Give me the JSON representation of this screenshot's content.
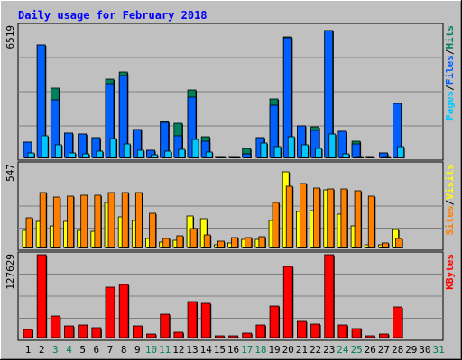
{
  "chart_data": {
    "type": "bar",
    "title": "Daily usage for February 2018",
    "categories": [
      "1",
      "2",
      "3",
      "4",
      "5",
      "6",
      "7",
      "8",
      "9",
      "10",
      "11",
      "12",
      "13",
      "14",
      "15",
      "16",
      "17",
      "18",
      "19",
      "20",
      "21",
      "22",
      "23",
      "24",
      "25",
      "26",
      "27",
      "28",
      "29",
      "30",
      "31"
    ],
    "weekend_days": [
      "3",
      "4",
      "10",
      "11",
      "17",
      "18",
      "24",
      "25",
      "31"
    ],
    "panels": [
      {
        "id": "top",
        "max_label": "6519",
        "ymax": 6519,
        "legend": [
          {
            "text": "Pages",
            "color": "#00c8ff"
          },
          {
            "text": "/",
            "color": "#000000"
          },
          {
            "text": "Files",
            "color": "#0060ff"
          },
          {
            "text": "/",
            "color": "#000000"
          },
          {
            "text": "Hits",
            "color": "#00805c"
          }
        ],
        "series": [
          {
            "name": "Hits",
            "color": "#00805c",
            "values": [
              760,
              5560,
              3430,
              1220,
              1180,
              985,
              3880,
              4220,
              1390,
              355,
              1780,
              1700,
              3360,
              1010,
              60,
              60,
              460,
              975,
              2920,
              6000,
              1560,
              1515,
              6290,
              1310,
              820,
              63,
              215,
              2700,
              0,
              0,
              0
            ]
          },
          {
            "name": "Files",
            "color": "#0060ff",
            "values": [
              760,
              5560,
              2870,
              1220,
              1180,
              985,
              3670,
              4070,
              1390,
              355,
              1730,
              1090,
              3010,
              790,
              60,
              60,
              200,
              975,
              2590,
              5960,
              1560,
              1350,
              6290,
              1280,
              660,
              63,
              215,
              2700,
              0,
              0,
              0
            ]
          },
          {
            "name": "Pages",
            "color": "#00c8ff",
            "values": [
              210,
              1050,
              640,
              230,
              200,
              325,
              950,
              650,
              360,
              145,
              330,
              385,
              875,
              255,
              33,
              25,
              15,
              700,
              540,
              1015,
              630,
              440,
              1175,
              190,
              25,
              3,
              60,
              525,
              0,
              0,
              0
            ]
          }
        ]
      },
      {
        "id": "middle",
        "max_label": "547",
        "ymax": 547,
        "legend": [
          {
            "text": "Sites",
            "color": "#ff8000"
          },
          {
            "text": "/",
            "color": "#000000"
          },
          {
            "text": "Visits",
            "color": "#ffff00"
          }
        ],
        "series": [
          {
            "name": "Visits",
            "color": "#ffff00",
            "values": [
              115,
              175,
              145,
              175,
              110,
              105,
              295,
              205,
              180,
              60,
              35,
              45,
              210,
              190,
              15,
              30,
              55,
              55,
              180,
              500,
              240,
              245,
              380,
              220,
              145,
              20,
              20,
              120,
              0,
              0,
              0
            ]
          },
          {
            "name": "Sites",
            "color": "#ff8000",
            "values": [
              195,
              360,
              330,
              340,
              345,
              345,
              365,
              365,
              365,
              225,
              60,
              80,
              125,
              85,
              40,
              65,
              65,
              70,
              300,
              405,
              425,
              390,
              385,
              385,
              375,
              340,
              30,
              60,
              0,
              0,
              0
            ]
          }
        ]
      },
      {
        "id": "bottom",
        "max_label": "127629",
        "ymax": 127629,
        "legend": [
          {
            "text": "KBytes",
            "color": "#ff0000"
          }
        ],
        "series": [
          {
            "name": "KBytes",
            "color": "#ff0000",
            "values": [
              12300,
              127600,
              33600,
              17800,
              20100,
              14700,
              77900,
              82000,
              17400,
              5500,
              35900,
              8900,
              56100,
              52300,
              3200,
              2600,
              6800,
              19600,
              48900,
              109000,
              25100,
              21100,
              127600,
              19800,
              14000,
              2700,
              6000,
              46500,
              0,
              0,
              0
            ]
          }
        ]
      }
    ]
  }
}
